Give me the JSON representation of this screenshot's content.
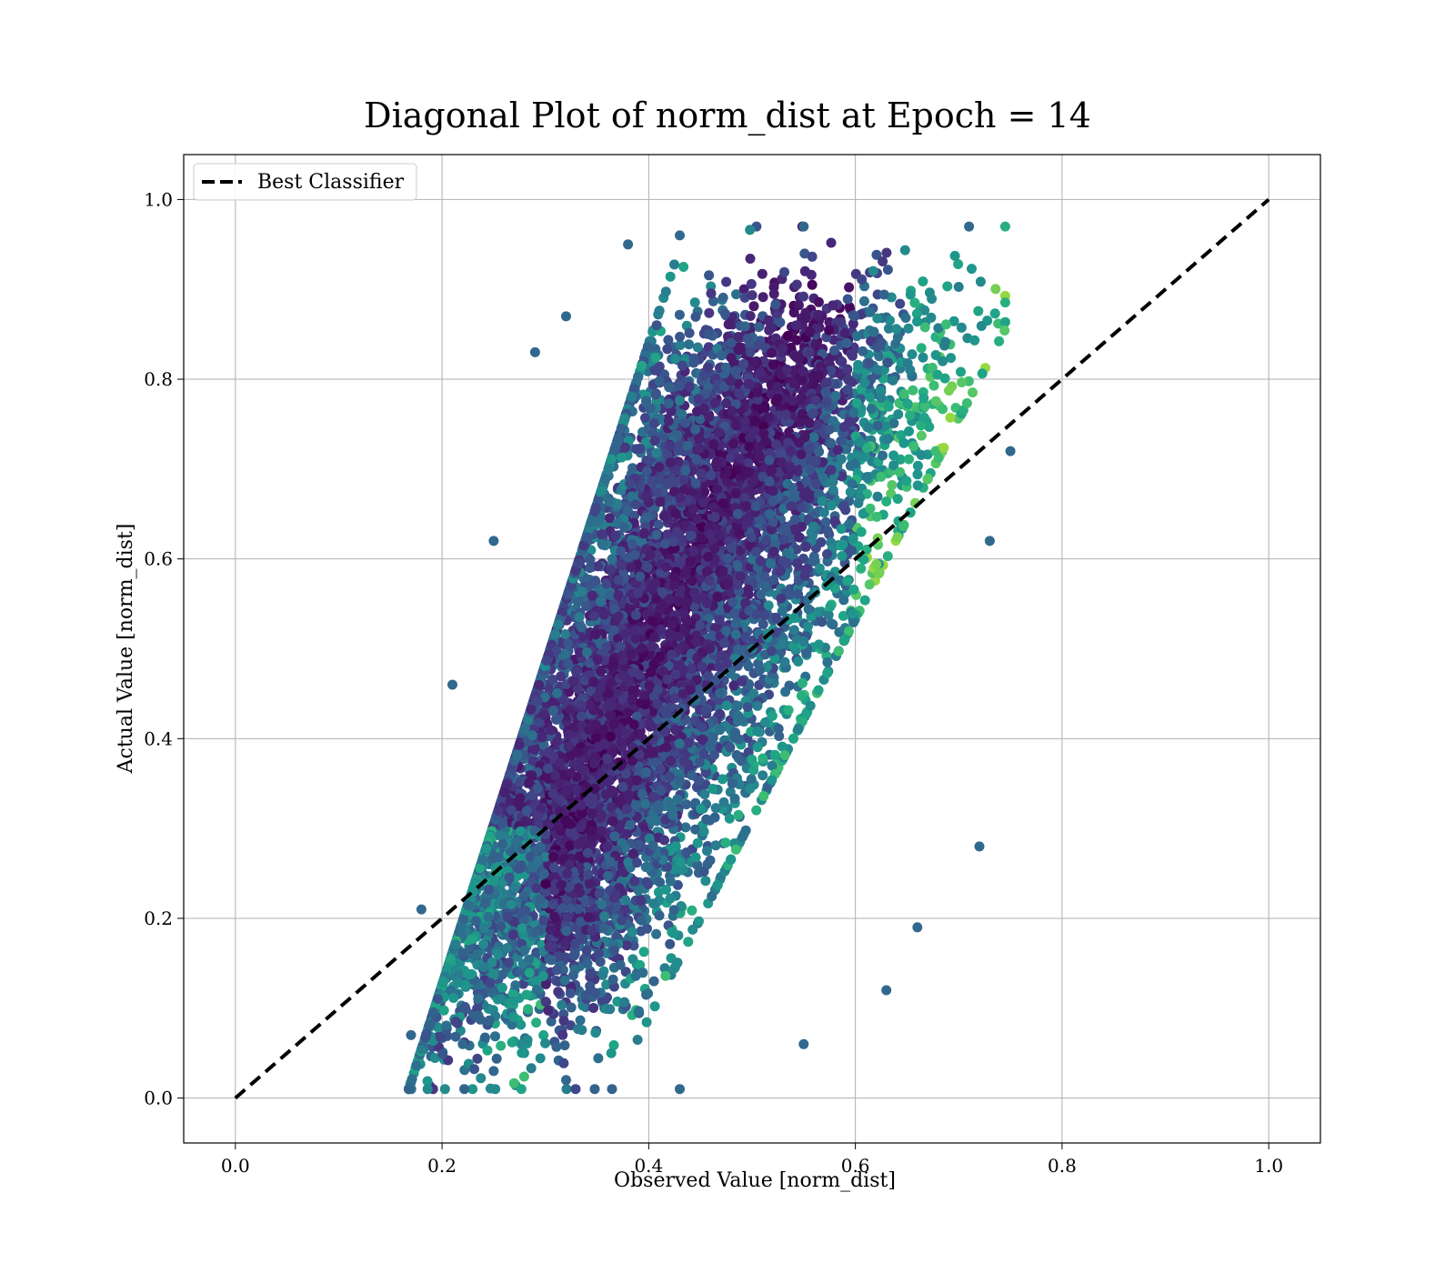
{
  "chart_data": {
    "type": "scatter",
    "title": "Diagonal Plot of norm_dist at Epoch = 14",
    "xlabel": "Observed Value [norm_dist]",
    "ylabel": "Actual Value [norm_dist]",
    "xlim": [
      -0.05,
      1.05
    ],
    "ylim": [
      -0.05,
      1.05
    ],
    "xticks": [
      "0.0",
      "0.2",
      "0.4",
      "0.6",
      "0.8",
      "1.0"
    ],
    "yticks": [
      "0.0",
      "0.2",
      "0.4",
      "0.6",
      "0.8",
      "1.0"
    ],
    "xtick_values": [
      0.0,
      0.2,
      0.4,
      0.6,
      0.8,
      1.0
    ],
    "ytick_values": [
      0.0,
      0.2,
      0.4,
      0.6,
      0.8,
      1.0
    ],
    "grid": true,
    "legend": {
      "position": "top-left",
      "entries": [
        "Best Classifier"
      ]
    },
    "colormap": "viridis",
    "reference_line": {
      "name": "Best Classifier",
      "x": [
        0.0,
        1.0
      ],
      "y": [
        0.0,
        1.0
      ],
      "style": "dashed",
      "color": "#000000"
    },
    "point_cloud": {
      "description_points": "dense parallelogram-shaped scatter; x range about 0.17 to 0.75, y range about 0.01 to 0.97",
      "approx_count": 9000,
      "x_range": [
        0.17,
        0.75
      ],
      "y_range": [
        0.01,
        0.97
      ],
      "sample_points": [
        [
          0.17,
          0.07
        ],
        [
          0.18,
          0.21
        ],
        [
          0.22,
          0.06
        ],
        [
          0.25,
          0.03
        ],
        [
          0.32,
          0.02
        ],
        [
          0.43,
          0.01
        ],
        [
          0.55,
          0.06
        ],
        [
          0.63,
          0.12
        ],
        [
          0.66,
          0.19
        ],
        [
          0.72,
          0.28
        ],
        [
          0.73,
          0.62
        ],
        [
          0.75,
          0.72
        ],
        [
          0.71,
          0.97
        ],
        [
          0.55,
          0.97
        ],
        [
          0.43,
          0.96
        ],
        [
          0.38,
          0.95
        ],
        [
          0.32,
          0.87
        ],
        [
          0.29,
          0.83
        ],
        [
          0.25,
          0.62
        ],
        [
          0.21,
          0.46
        ]
      ]
    }
  }
}
